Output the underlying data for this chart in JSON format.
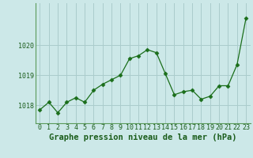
{
  "x": [
    0,
    1,
    2,
    3,
    4,
    5,
    6,
    7,
    8,
    9,
    10,
    11,
    12,
    13,
    14,
    15,
    16,
    17,
    18,
    19,
    20,
    21,
    22,
    23
  ],
  "y": [
    1017.85,
    1018.1,
    1017.75,
    1018.1,
    1018.25,
    1018.1,
    1018.5,
    1018.7,
    1018.85,
    1019.0,
    1019.55,
    1019.65,
    1019.85,
    1019.75,
    1019.05,
    1018.35,
    1018.45,
    1018.5,
    1018.2,
    1018.3,
    1018.65,
    1018.65,
    1019.35,
    1020.9
  ],
  "line_color": "#1a6e1a",
  "marker": "D",
  "marker_size": 2.5,
  "bg_color": "#cce8e8",
  "grid_color": "#aacccc",
  "xlabel": "Graphe pression niveau de la mer (hPa)",
  "xlabel_color": "#1a5c1a",
  "xlabel_fontsize": 7.5,
  "tick_color": "#1a5c1a",
  "tick_fontsize": 6.0,
  "ylim": [
    1017.4,
    1021.4
  ],
  "yticks": [
    1018,
    1019,
    1020
  ],
  "xlim": [
    -0.5,
    23.5
  ],
  "xticks": [
    0,
    1,
    2,
    3,
    4,
    5,
    6,
    7,
    8,
    9,
    10,
    11,
    12,
    13,
    14,
    15,
    16,
    17,
    18,
    19,
    20,
    21,
    22,
    23
  ],
  "spine_color": "#5a9a5a",
  "linewidth": 0.9
}
